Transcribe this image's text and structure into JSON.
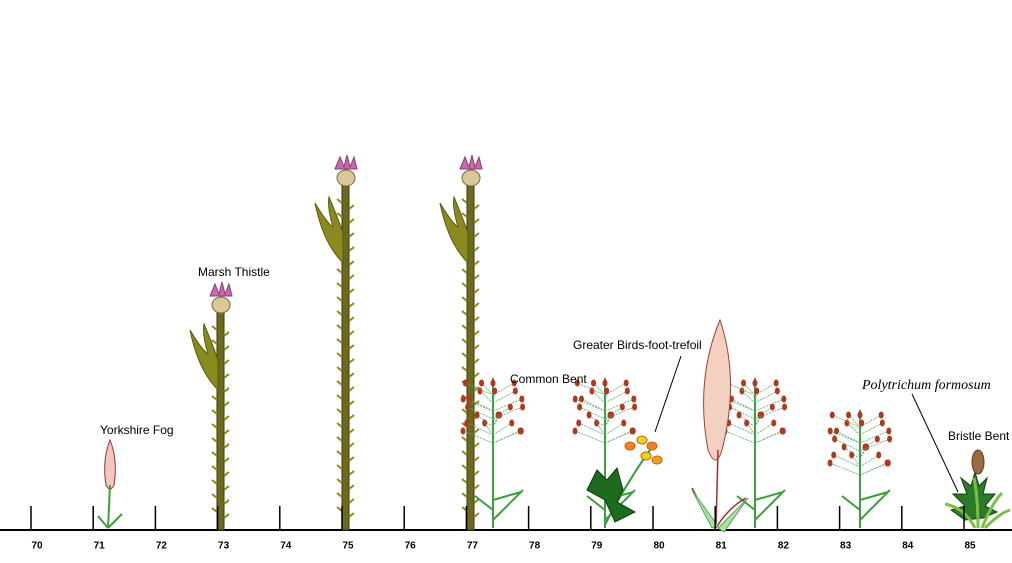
{
  "axis": {
    "ticks": [
      "70",
      "71",
      "72",
      "73",
      "74",
      "75",
      "76",
      "77",
      "78",
      "79",
      "80",
      "81",
      "82",
      "83",
      "84",
      "85"
    ]
  },
  "plant_labels": [
    {
      "text": "Yorkshire Fog"
    },
    {
      "text": "Marsh Thistle"
    },
    {
      "text": "Common Bent"
    },
    {
      "text": "Greater Birds-foot-trefoil"
    },
    {
      "text": "Polytrichum formosum"
    },
    {
      "text": "Bristle Bent"
    }
  ]
}
